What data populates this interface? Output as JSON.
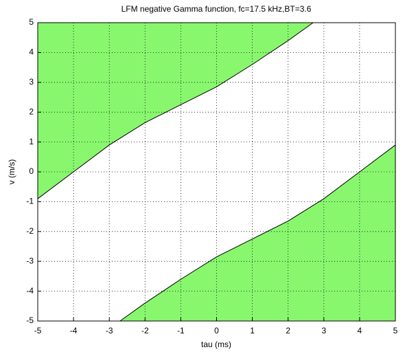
{
  "chart_data": {
    "type": "area",
    "title": "LFM negative Gamma function, fc=17.5 kHz,BT=3.6",
    "xlabel": "tau (ms)",
    "ylabel": "v (m/s)",
    "xlim": [
      -5,
      5
    ],
    "ylim": [
      -5,
      5
    ],
    "xticks": [
      -5,
      -4,
      -3,
      -2,
      -1,
      0,
      1,
      2,
      3,
      4,
      5
    ],
    "yticks": [
      -5,
      -4,
      -3,
      -2,
      -1,
      0,
      1,
      2,
      3,
      4,
      5
    ],
    "grid": true,
    "series": [
      {
        "color": "#88f76e",
        "fill": "above",
        "x": [
          -5,
          -4,
          -3,
          -2,
          -1,
          0,
          1,
          2,
          2.7
        ],
        "values": [
          -0.9,
          0,
          0.9,
          1.65,
          2.25,
          2.85,
          3.6,
          4.4,
          5
        ]
      },
      {
        "color": "#88f76e",
        "fill": "below",
        "x": [
          -2.7,
          -2,
          -1,
          0,
          1,
          2,
          3,
          4,
          5
        ],
        "values": [
          -5,
          -4.4,
          -3.6,
          -2.85,
          -2.25,
          -1.65,
          -0.9,
          0,
          0.9
        ]
      }
    ]
  }
}
